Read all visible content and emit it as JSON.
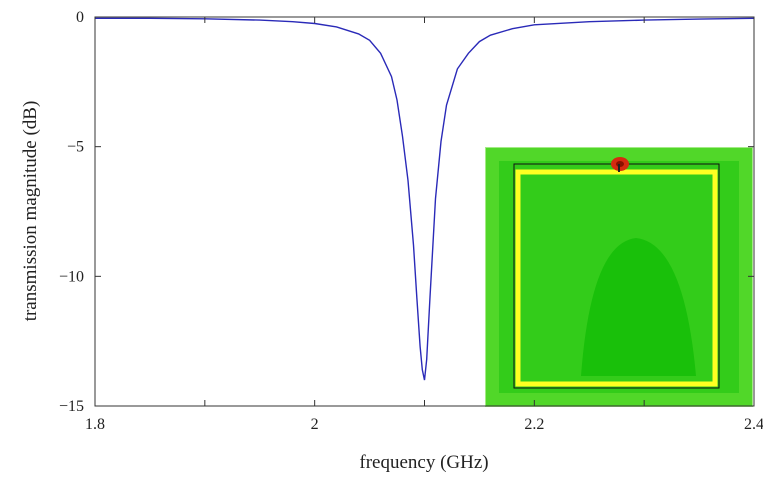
{
  "chart_data": {
    "type": "line",
    "xlabel": "frequency (GHz)",
    "ylabel": "transmission magnitude (dB)",
    "xlim": [
      1.8,
      2.4
    ],
    "ylim": [
      -15,
      0
    ],
    "x_ticks": [
      {
        "value": 1.8,
        "label": "1.8"
      },
      {
        "value": 2.0,
        "label": "2"
      },
      {
        "value": 2.2,
        "label": "2.2"
      },
      {
        "value": 2.4,
        "label": "2.4"
      }
    ],
    "x_minor_ticks": [
      1.9,
      2.1,
      2.3
    ],
    "y_ticks": [
      {
        "value": 0,
        "label": "0"
      },
      {
        "value": -5,
        "label": "−5"
      },
      {
        "value": -10,
        "label": "−10"
      },
      {
        "value": -15,
        "label": "−15"
      }
    ],
    "grid": false,
    "series": [
      {
        "color": "#2a2ab8",
        "x": [
          1.8,
          1.85,
          1.9,
          1.95,
          1.98,
          2.0,
          2.02,
          2.04,
          2.05,
          2.06,
          2.07,
          2.075,
          2.08,
          2.085,
          2.09,
          2.093,
          2.096,
          2.098,
          2.1,
          2.102,
          2.105,
          2.11,
          2.115,
          2.12,
          2.13,
          2.14,
          2.15,
          2.16,
          2.18,
          2.2,
          2.25,
          2.3,
          2.35,
          2.4
        ],
        "y": [
          -0.05,
          -0.05,
          -0.07,
          -0.12,
          -0.18,
          -0.25,
          -0.38,
          -0.65,
          -0.9,
          -1.4,
          -2.3,
          -3.2,
          -4.6,
          -6.3,
          -8.8,
          -10.8,
          -12.7,
          -13.6,
          -14.0,
          -13.2,
          -10.8,
          -7.0,
          -4.8,
          -3.4,
          -2.0,
          -1.4,
          -0.95,
          -0.7,
          -0.45,
          -0.3,
          -0.18,
          -0.12,
          -0.08,
          -0.05
        ]
      }
    ]
  },
  "inset": {
    "background": "#33cc1a",
    "ring_color": "#ffff22",
    "hotspot_color": "#d62a10"
  }
}
